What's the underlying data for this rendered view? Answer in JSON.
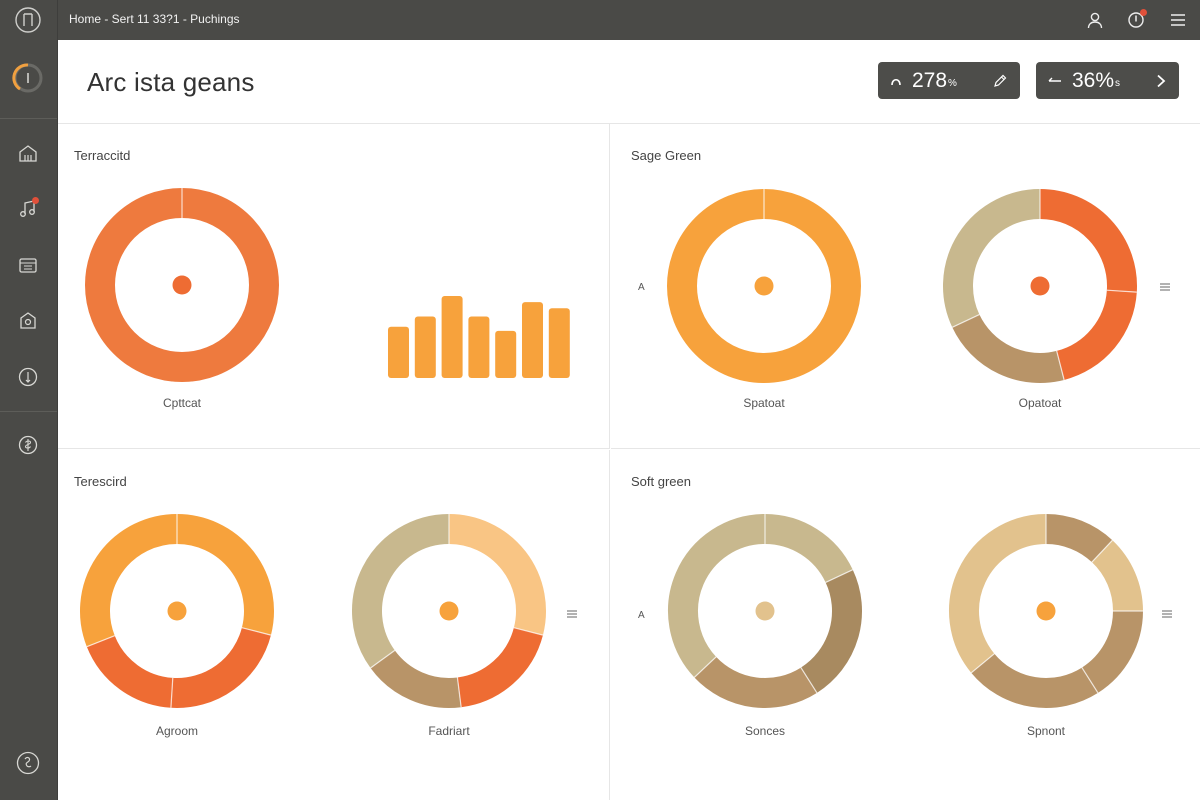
{
  "topbar": {
    "breadcrumb": "Home - Sert 11 33?1 - Puchings"
  },
  "header": {
    "title": "Arc ista geans",
    "stats": [
      {
        "value": "278",
        "unit": "%",
        "direction_icon": "arc-up-icon",
        "action_icon": "pencil-icon"
      },
      {
        "value": "36%",
        "unit": "s",
        "direction_icon": "arrow-left-icon",
        "action_icon": "chevron-right-icon"
      }
    ]
  },
  "colors": {
    "sidebar": "#4a4a47",
    "orange": "#f7a23c",
    "terracotta": "#ee6c33",
    "khaki": "#c8b88e",
    "brown": "#b89468",
    "peach": "#f9c584",
    "sand": "#e2c28d"
  },
  "panels": [
    {
      "title": "Terraccitd",
      "donuts": [
        {
          "label": "Cpttcat",
          "segments": [
            {
              "value": 100,
              "color": "#ee7a3e"
            }
          ],
          "center_dot": "#ee6c33"
        }
      ],
      "bars": {
        "values": [
          5,
          6,
          8,
          6,
          4.6,
          7.4,
          6.8
        ],
        "color": "#f7a23c"
      }
    },
    {
      "title": "Sage Green",
      "axis_letter": "A",
      "donuts": [
        {
          "label": "Spatoat",
          "segments": [
            {
              "value": 100,
              "color": "#f7a23c"
            }
          ],
          "center_dot": "#f7a23c"
        },
        {
          "label": "Opatoat",
          "segments": [
            {
              "value": 26,
              "color": "#ee6c33"
            },
            {
              "value": 20,
              "color": "#ee6c33"
            },
            {
              "value": 22,
              "color": "#b89468"
            },
            {
              "value": 32,
              "color": "#c8b88e"
            }
          ],
          "center_dot": "#ee6c33"
        }
      ]
    },
    {
      "title": "Terescird",
      "donuts": [
        {
          "label": "Agroom",
          "segments": [
            {
              "value": 29,
              "color": "#f7a23c"
            },
            {
              "value": 22,
              "color": "#ee6c33"
            },
            {
              "value": 18,
              "color": "#ee6c33"
            },
            {
              "value": 31,
              "color": "#f7a23c"
            }
          ],
          "center_dot": "#f7a23c"
        },
        {
          "label": "Fadriart",
          "segments": [
            {
              "value": 29,
              "color": "#f9c584"
            },
            {
              "value": 19,
              "color": "#ee6c33"
            },
            {
              "value": 17,
              "color": "#b89468"
            },
            {
              "value": 35,
              "color": "#c8b88e"
            }
          ],
          "center_dot": "#f7a23c"
        }
      ]
    },
    {
      "title": "Soft green",
      "axis_letter": "A",
      "donuts": [
        {
          "label": "Sonces",
          "segments": [
            {
              "value": 18,
              "color": "#c8b88e"
            },
            {
              "value": 23,
              "color": "#a88a60"
            },
            {
              "value": 22,
              "color": "#b89468"
            },
            {
              "value": 37,
              "color": "#c8b88e"
            }
          ],
          "center_dot": "#e2c28d"
        },
        {
          "label": "Spnont",
          "segments": [
            {
              "value": 12,
              "color": "#b89468"
            },
            {
              "value": 13,
              "color": "#e2c28d"
            },
            {
              "value": 16,
              "color": "#b89468"
            },
            {
              "value": 23,
              "color": "#b89468"
            },
            {
              "value": 36,
              "color": "#e2c28d"
            }
          ],
          "center_dot": "#f7a23c"
        }
      ]
    }
  ]
}
